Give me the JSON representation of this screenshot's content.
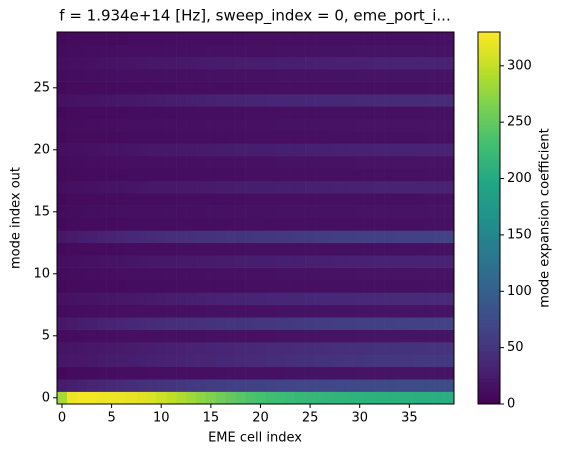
{
  "chart_data": {
    "type": "heatmap",
    "title": "f = 1.934e+14 [Hz], sweep_index = 0, eme_port_i...",
    "x_label": "EME cell index",
    "y_label": "mode index out",
    "colorbar_label": "mode expansion coefficient",
    "colormap": "viridis",
    "x": [
      0,
      1,
      2,
      3,
      4,
      5,
      6,
      7,
      8,
      9,
      10,
      11,
      12,
      13,
      14,
      15,
      16,
      17,
      18,
      19,
      20,
      21,
      22,
      23,
      24,
      25,
      26,
      27,
      28,
      29,
      30,
      31,
      32,
      33,
      34,
      35,
      36,
      37,
      38,
      39
    ],
    "y": [
      0,
      1,
      2,
      3,
      4,
      5,
      6,
      7,
      8,
      9,
      10,
      11,
      12,
      13,
      14,
      15,
      16,
      17,
      18,
      19,
      20,
      21,
      22,
      23,
      24,
      25,
      26,
      27,
      28,
      29
    ],
    "xlim": [
      -0.5,
      39.5
    ],
    "ylim": [
      -0.5,
      29.5
    ],
    "xticks": [
      0,
      5,
      10,
      15,
      20,
      25,
      30,
      35
    ],
    "yticks": [
      0,
      5,
      10,
      15,
      20,
      25
    ],
    "clim": [
      0,
      330
    ],
    "cticks": [
      0,
      50,
      100,
      150,
      200,
      250,
      300
    ],
    "z": [
      [
        285,
        322,
        325,
        325,
        323,
        322,
        320,
        318,
        315,
        312,
        305,
        298,
        290,
        282,
        274,
        266,
        258,
        250,
        243,
        237,
        232,
        228,
        225,
        222,
        220,
        218,
        216,
        215,
        214,
        213,
        212,
        211,
        210,
        210,
        209,
        209,
        208,
        208,
        207,
        207
      ],
      [
        25,
        28,
        30,
        33,
        35,
        38,
        40,
        42,
        44,
        46,
        48,
        50,
        52,
        54,
        56,
        58,
        60,
        61,
        62,
        63,
        64,
        65,
        66,
        67,
        68,
        69,
        70,
        70,
        71,
        71,
        72,
        72,
        73,
        73,
        74,
        74,
        75,
        75,
        75,
        75
      ],
      [
        8,
        9,
        10,
        10,
        11,
        11,
        12,
        12,
        12,
        13,
        13,
        13,
        13,
        14,
        14,
        14,
        14,
        15,
        15,
        15,
        15,
        15,
        15,
        16,
        16,
        16,
        16,
        16,
        16,
        16,
        17,
        17,
        17,
        17,
        17,
        17,
        17,
        17,
        17,
        17
      ],
      [
        20,
        21,
        22,
        23,
        24,
        25,
        26,
        27,
        28,
        29,
        30,
        31,
        32,
        33,
        34,
        35,
        36,
        37,
        38,
        39,
        40,
        41,
        42,
        43,
        44,
        45,
        46,
        47,
        48,
        49,
        50,
        51,
        52,
        52,
        53,
        53,
        54,
        54,
        55,
        55
      ],
      [
        18,
        19,
        20,
        21,
        22,
        23,
        24,
        25,
        26,
        27,
        28,
        29,
        30,
        31,
        32,
        33,
        34,
        35,
        36,
        37,
        38,
        39,
        40,
        40,
        41,
        42,
        42,
        43,
        44,
        44,
        45,
        45,
        46,
        46,
        47,
        47,
        47,
        48,
        48,
        48
      ],
      [
        10,
        11,
        11,
        12,
        12,
        12,
        13,
        13,
        13,
        13,
        14,
        14,
        14,
        14,
        14,
        15,
        15,
        15,
        15,
        15,
        15,
        15,
        16,
        16,
        16,
        16,
        16,
        16,
        16,
        16,
        17,
        17,
        17,
        17,
        17,
        17,
        17,
        17,
        17,
        17
      ],
      [
        22,
        24,
        26,
        28,
        30,
        32,
        34,
        36,
        38,
        40,
        42,
        43,
        44,
        45,
        46,
        47,
        48,
        49,
        50,
        51,
        52,
        53,
        54,
        55,
        56,
        57,
        58,
        59,
        60,
        60,
        61,
        61,
        62,
        62,
        63,
        63,
        64,
        64,
        65,
        65
      ],
      [
        10,
        11,
        11,
        12,
        12,
        12,
        13,
        13,
        13,
        13,
        14,
        14,
        14,
        14,
        14,
        15,
        15,
        15,
        15,
        15,
        15,
        15,
        16,
        16,
        16,
        16,
        16,
        16,
        16,
        16,
        17,
        17,
        17,
        17,
        17,
        17,
        17,
        17,
        17,
        17
      ],
      [
        15,
        16,
        17,
        18,
        19,
        20,
        21,
        22,
        23,
        24,
        25,
        26,
        27,
        28,
        29,
        30,
        31,
        32,
        32,
        33,
        33,
        34,
        34,
        35,
        35,
        36,
        36,
        37,
        37,
        37,
        38,
        38,
        38,
        39,
        39,
        39,
        39,
        40,
        40,
        40
      ],
      [
        8,
        9,
        9,
        10,
        10,
        10,
        10,
        11,
        11,
        11,
        11,
        11,
        12,
        12,
        12,
        12,
        12,
        12,
        12,
        13,
        13,
        13,
        13,
        13,
        13,
        13,
        13,
        14,
        14,
        14,
        14,
        14,
        14,
        14,
        14,
        14,
        14,
        15,
        15,
        15
      ],
      [
        10,
        11,
        11,
        12,
        12,
        12,
        13,
        13,
        13,
        13,
        14,
        14,
        14,
        14,
        14,
        15,
        15,
        15,
        15,
        15,
        15,
        15,
        16,
        16,
        16,
        16,
        16,
        16,
        16,
        16,
        17,
        17,
        17,
        17,
        17,
        17,
        17,
        17,
        17,
        17
      ],
      [
        12,
        13,
        14,
        15,
        16,
        17,
        18,
        19,
        20,
        21,
        22,
        22,
        23,
        23,
        24,
        24,
        25,
        25,
        26,
        26,
        27,
        27,
        28,
        28,
        28,
        29,
        29,
        29,
        30,
        30,
        30,
        30,
        31,
        31,
        31,
        31,
        32,
        32,
        32,
        32
      ],
      [
        8,
        9,
        9,
        10,
        10,
        10,
        10,
        11,
        11,
        11,
        11,
        11,
        12,
        12,
        12,
        12,
        12,
        12,
        12,
        13,
        13,
        13,
        13,
        13,
        13,
        13,
        13,
        14,
        14,
        14,
        14,
        14,
        14,
        14,
        14,
        14,
        14,
        15,
        15,
        15
      ],
      [
        22,
        24,
        26,
        28,
        30,
        32,
        34,
        36,
        38,
        40,
        42,
        43,
        44,
        45,
        46,
        47,
        48,
        49,
        50,
        51,
        52,
        53,
        54,
        55,
        56,
        57,
        58,
        59,
        60,
        60,
        61,
        61,
        62,
        62,
        63,
        63,
        64,
        64,
        65,
        65
      ],
      [
        8,
        9,
        9,
        10,
        10,
        10,
        10,
        11,
        11,
        11,
        11,
        11,
        12,
        12,
        12,
        12,
        12,
        12,
        12,
        13,
        13,
        13,
        13,
        13,
        13,
        13,
        13,
        14,
        14,
        14,
        14,
        14,
        14,
        14,
        14,
        14,
        14,
        15,
        15,
        15
      ],
      [
        10,
        11,
        11,
        12,
        12,
        12,
        13,
        13,
        13,
        13,
        14,
        14,
        14,
        14,
        14,
        15,
        15,
        15,
        15,
        15,
        15,
        15,
        16,
        16,
        16,
        16,
        16,
        16,
        16,
        16,
        17,
        17,
        17,
        17,
        17,
        17,
        17,
        17,
        17,
        17
      ],
      [
        8,
        9,
        9,
        10,
        10,
        10,
        10,
        11,
        11,
        11,
        11,
        11,
        12,
        12,
        12,
        12,
        12,
        12,
        12,
        13,
        13,
        13,
        13,
        13,
        13,
        13,
        13,
        14,
        14,
        14,
        14,
        14,
        14,
        14,
        14,
        14,
        14,
        15,
        15,
        15
      ],
      [
        12,
        13,
        14,
        15,
        16,
        17,
        18,
        19,
        20,
        21,
        22,
        22,
        23,
        23,
        24,
        24,
        25,
        25,
        26,
        26,
        27,
        27,
        28,
        28,
        28,
        29,
        29,
        29,
        30,
        30,
        30,
        30,
        31,
        31,
        31,
        31,
        32,
        32,
        32,
        32
      ],
      [
        8,
        9,
        9,
        10,
        10,
        10,
        10,
        11,
        11,
        11,
        11,
        11,
        12,
        12,
        12,
        12,
        12,
        12,
        12,
        13,
        13,
        13,
        13,
        13,
        13,
        13,
        13,
        14,
        14,
        14,
        14,
        14,
        14,
        14,
        14,
        14,
        14,
        15,
        15,
        15
      ],
      [
        10,
        11,
        11,
        12,
        12,
        12,
        13,
        13,
        13,
        13,
        14,
        14,
        14,
        14,
        14,
        15,
        15,
        15,
        15,
        15,
        15,
        15,
        16,
        16,
        16,
        16,
        16,
        16,
        16,
        16,
        17,
        17,
        17,
        17,
        17,
        17,
        17,
        17,
        17,
        17
      ],
      [
        12,
        13,
        14,
        15,
        16,
        17,
        18,
        19,
        20,
        21,
        22,
        22,
        23,
        23,
        24,
        24,
        25,
        25,
        26,
        26,
        27,
        27,
        28,
        28,
        28,
        29,
        29,
        29,
        30,
        30,
        30,
        30,
        31,
        31,
        31,
        31,
        32,
        32,
        32,
        32
      ],
      [
        8,
        9,
        9,
        10,
        10,
        10,
        10,
        11,
        11,
        11,
        11,
        11,
        12,
        12,
        12,
        12,
        12,
        12,
        12,
        13,
        13,
        13,
        13,
        13,
        13,
        13,
        13,
        14,
        14,
        14,
        14,
        14,
        14,
        14,
        14,
        14,
        14,
        15,
        15,
        15
      ],
      [
        10,
        11,
        11,
        12,
        12,
        12,
        13,
        13,
        13,
        13,
        14,
        14,
        14,
        14,
        14,
        15,
        15,
        15,
        15,
        15,
        15,
        15,
        16,
        16,
        16,
        16,
        16,
        16,
        16,
        16,
        17,
        17,
        17,
        17,
        17,
        17,
        17,
        17,
        17,
        17
      ],
      [
        8,
        9,
        9,
        10,
        10,
        10,
        10,
        11,
        11,
        11,
        11,
        11,
        12,
        12,
        12,
        12,
        12,
        12,
        12,
        13,
        13,
        13,
        13,
        13,
        13,
        13,
        13,
        14,
        14,
        14,
        14,
        14,
        14,
        14,
        14,
        14,
        14,
        15,
        15,
        15
      ],
      [
        15,
        16,
        17,
        18,
        19,
        20,
        21,
        22,
        23,
        24,
        25,
        26,
        27,
        28,
        29,
        30,
        31,
        32,
        32,
        33,
        33,
        34,
        34,
        35,
        35,
        36,
        36,
        37,
        37,
        37,
        38,
        38,
        38,
        39,
        39,
        39,
        39,
        40,
        40,
        40
      ],
      [
        8,
        9,
        9,
        10,
        10,
        10,
        10,
        11,
        11,
        11,
        11,
        11,
        12,
        12,
        12,
        12,
        12,
        12,
        12,
        13,
        13,
        13,
        13,
        13,
        13,
        13,
        13,
        14,
        14,
        14,
        14,
        14,
        14,
        14,
        14,
        14,
        14,
        15,
        15,
        15
      ],
      [
        10,
        11,
        11,
        12,
        12,
        12,
        13,
        13,
        13,
        13,
        14,
        14,
        14,
        14,
        14,
        15,
        15,
        15,
        15,
        15,
        15,
        15,
        16,
        16,
        16,
        16,
        16,
        16,
        16,
        16,
        17,
        17,
        17,
        17,
        17,
        17,
        17,
        17,
        17,
        17
      ],
      [
        12,
        13,
        14,
        15,
        16,
        17,
        18,
        19,
        20,
        21,
        22,
        22,
        23,
        23,
        24,
        24,
        25,
        25,
        26,
        26,
        27,
        27,
        28,
        28,
        28,
        29,
        29,
        29,
        30,
        30,
        30,
        30,
        31,
        31,
        31,
        31,
        32,
        32,
        32,
        32
      ],
      [
        10,
        11,
        11,
        12,
        12,
        12,
        13,
        13,
        13,
        13,
        14,
        14,
        14,
        14,
        14,
        15,
        15,
        15,
        15,
        15,
        15,
        15,
        16,
        16,
        16,
        16,
        16,
        16,
        16,
        16,
        17,
        17,
        17,
        17,
        17,
        17,
        17,
        17,
        17,
        17
      ],
      [
        8,
        9,
        9,
        10,
        10,
        10,
        10,
        11,
        11,
        11,
        11,
        11,
        12,
        12,
        12,
        12,
        12,
        12,
        12,
        13,
        13,
        13,
        13,
        13,
        13,
        13,
        13,
        14,
        14,
        14,
        14,
        14,
        14,
        14,
        14,
        14,
        14,
        15,
        15,
        15
      ]
    ]
  }
}
